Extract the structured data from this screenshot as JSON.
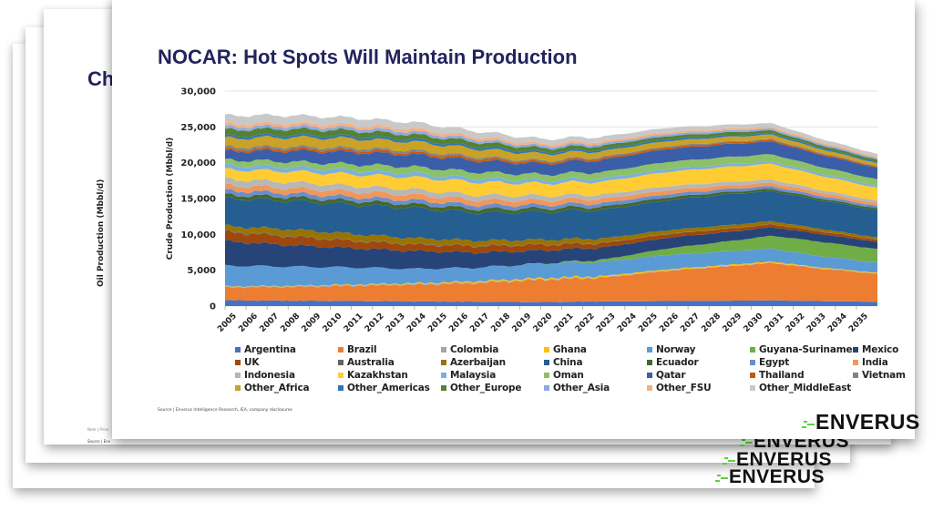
{
  "back_slides": {
    "title_fragment": "Ch",
    "ylabel": "Oil Production (Mbbl/d)",
    "note": "Note | Price",
    "source": "Source | Env",
    "logos": [
      "ENVERUS",
      "ENVERUS",
      "ENVERUS"
    ]
  },
  "front_slide": {
    "title": "NOCAR: Hot Spots Will Maintain Production",
    "source": "Source | Enverus Intelligence Research, IEA, company disclosures",
    "logo": "ENVERUS"
  },
  "colors": {
    "title": "#23235e",
    "logo_accent": "#5bd23c"
  },
  "chart_data": {
    "type": "area",
    "stacked": true,
    "title": "NOCAR: Hot Spots Will Maintain Production",
    "xlabel": "",
    "ylabel": "Crude Production (Mbbl/d)",
    "ylim": [
      0,
      30000
    ],
    "yticks": [
      "0",
      "5,000",
      "10,000",
      "15,000",
      "20,000",
      "25,000",
      "30,000"
    ],
    "ytick_values": [
      0,
      5000,
      10000,
      15000,
      20000,
      25000,
      30000
    ],
    "grid": true,
    "legend_position": "bottom",
    "x": [
      2005,
      2008,
      2011,
      2014,
      2017,
      2020,
      2023,
      2026,
      2029,
      2031,
      2033,
      2036
    ],
    "xticks": [
      "2005",
      "2006",
      "2007",
      "2008",
      "2009",
      "2010",
      "2011",
      "2012",
      "2013",
      "2014",
      "2015",
      "2016",
      "2017",
      "2018",
      "2019",
      "2020",
      "2021",
      "2022",
      "2023",
      "2024",
      "2025",
      "2026",
      "2027",
      "2028",
      "2029",
      "2030",
      "2031",
      "2032",
      "2033",
      "2034",
      "2035"
    ],
    "series": [
      {
        "name": "Argentina",
        "color": "#4472c4",
        "values": [
          800,
          750,
          700,
          650,
          600,
          550,
          650,
          700,
          750,
          800,
          700,
          600
        ]
      },
      {
        "name": "Brazil",
        "color": "#ed7d31",
        "values": [
          1800,
          1900,
          2100,
          2300,
          2600,
          3100,
          3300,
          4200,
          4800,
          5200,
          4600,
          3900
        ]
      },
      {
        "name": "Colombia",
        "color": "#a5a5a5",
        "values": [
          100,
          100,
          120,
          130,
          110,
          90,
          90,
          80,
          70,
          70,
          60,
          50
        ]
      },
      {
        "name": "Ghana",
        "color": "#ffc000",
        "values": [
          50,
          60,
          80,
          100,
          150,
          150,
          150,
          150,
          150,
          140,
          120,
          100
        ]
      },
      {
        "name": "Norway",
        "color": "#5b9bd5",
        "values": [
          2900,
          2700,
          2400,
          2000,
          1900,
          2000,
          2000,
          2000,
          1900,
          1800,
          1600,
          1400
        ]
      },
      {
        "name": "Guyana-Suriname",
        "color": "#70ad47",
        "values": [
          0,
          0,
          0,
          0,
          0,
          50,
          300,
          900,
          1400,
          1800,
          2000,
          1900
        ]
      },
      {
        "name": "Mexico",
        "color": "#264478",
        "values": [
          3400,
          3000,
          2700,
          2500,
          2100,
          1800,
          1700,
          1500,
          1300,
          1200,
          1100,
          1000
        ]
      },
      {
        "name": "UK",
        "color": "#9e480e",
        "values": [
          1300,
          1200,
          1000,
          900,
          900,
          800,
          600,
          500,
          450,
          400,
          350,
          300
        ]
      },
      {
        "name": "Australia",
        "color": "#636363",
        "values": [
          100,
          100,
          80,
          80,
          70,
          60,
          50,
          40,
          40,
          30,
          30,
          20
        ]
      },
      {
        "name": "Azerbaijan",
        "color": "#997300",
        "values": [
          700,
          900,
          900,
          800,
          700,
          650,
          600,
          500,
          450,
          400,
          350,
          300
        ]
      },
      {
        "name": "China",
        "color": "#255e91",
        "values": [
          3900,
          4000,
          4100,
          4200,
          3900,
          3900,
          4000,
          4200,
          4300,
          4200,
          4000,
          3800
        ]
      },
      {
        "name": "Ecuador",
        "color": "#43682b",
        "values": [
          500,
          500,
          500,
          550,
          500,
          450,
          450,
          400,
          350,
          300,
          280,
          250
        ]
      },
      {
        "name": "Egypt",
        "color": "#698ed0",
        "values": [
          600,
          550,
          550,
          550,
          550,
          500,
          500,
          450,
          400,
          380,
          350,
          320
        ]
      },
      {
        "name": "India",
        "color": "#f1975a",
        "values": [
          700,
          700,
          750,
          750,
          700,
          650,
          600,
          550,
          500,
          480,
          450,
          400
        ]
      },
      {
        "name": "Indonesia",
        "color": "#b7b7b7",
        "values": [
          900,
          850,
          800,
          750,
          700,
          650,
          600,
          550,
          500,
          450,
          400,
          350
        ]
      },
      {
        "name": "Kazakhstan",
        "color": "#ffcd33",
        "values": [
          1300,
          1500,
          1600,
          1700,
          1800,
          1700,
          1800,
          2000,
          2100,
          2200,
          2000,
          1800
        ]
      },
      {
        "name": "Malaysia",
        "color": "#7cafdd",
        "values": [
          600,
          600,
          550,
          550,
          500,
          450,
          450,
          400,
          350,
          330,
          300,
          280
        ]
      },
      {
        "name": "Oman",
        "color": "#8cc168",
        "values": [
          750,
          750,
          850,
          900,
          900,
          800,
          900,
          1000,
          1000,
          1000,
          950,
          900
        ]
      },
      {
        "name": "Qatar",
        "color": "#3a5ea8",
        "values": [
          1200,
          1500,
          1700,
          1700,
          1600,
          1500,
          1700,
          1800,
          1800,
          1800,
          1700,
          1600
        ]
      },
      {
        "name": "Thailand",
        "color": "#c65911",
        "values": [
          250,
          300,
          300,
          300,
          300,
          250,
          250,
          250,
          220,
          200,
          180,
          160
        ]
      },
      {
        "name": "Vietnam",
        "color": "#848484",
        "values": [
          350,
          300,
          300,
          300,
          250,
          200,
          180,
          160,
          140,
          130,
          120,
          100
        ]
      },
      {
        "name": "Other_Africa",
        "color": "#c9a227",
        "values": [
          1200,
          1300,
          1300,
          1200,
          1100,
          900,
          800,
          700,
          650,
          600,
          500,
          400
        ]
      },
      {
        "name": "Other_Americas",
        "color": "#2e75b6",
        "values": [
          300,
          300,
          300,
          300,
          300,
          250,
          250,
          250,
          230,
          220,
          200,
          180
        ]
      },
      {
        "name": "Other_Europe",
        "color": "#548235",
        "values": [
          900,
          850,
          800,
          700,
          650,
          550,
          500,
          450,
          400,
          380,
          350,
          300
        ]
      },
      {
        "name": "Other_Asia",
        "color": "#8faadc",
        "values": [
          400,
          400,
          400,
          400,
          350,
          300,
          300,
          280,
          260,
          250,
          230,
          200
        ]
      },
      {
        "name": "Other_FSU",
        "color": "#f4b183",
        "values": [
          400,
          400,
          400,
          400,
          350,
          300,
          300,
          280,
          260,
          250,
          230,
          200
        ]
      },
      {
        "name": "Other_MiddleEast",
        "color": "#c9c9c9",
        "values": [
          1200,
          1100,
          1000,
          900,
          800,
          700,
          650,
          600,
          550,
          500,
          450,
          400
        ]
      }
    ]
  }
}
